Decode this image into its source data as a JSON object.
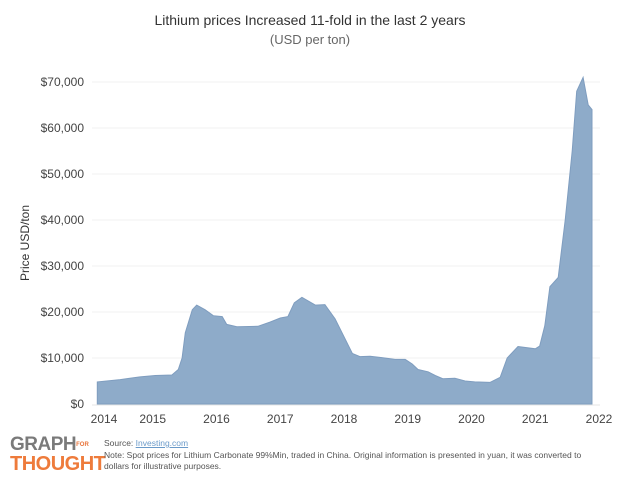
{
  "chart_data": {
    "type": "area",
    "title": "Lithium prices Increased 11-fold in the last 2 years",
    "subtitle": "(USD per ton)",
    "xlabel": "",
    "ylabel": "Price USD/ton",
    "xlim": [
      2014,
      2022
    ],
    "ylim": [
      0,
      70000
    ],
    "x_ticks": [
      "2014",
      "2015",
      "2016",
      "2017",
      "2018",
      "2019",
      "2020",
      "2021",
      "2022"
    ],
    "y_ticks": [
      "$0",
      "$10,000",
      "$20,000",
      "$30,000",
      "$40,000",
      "$50,000",
      "$60,000",
      "$70,000"
    ],
    "grid": true,
    "color": "#8eabc9",
    "line_color": "#7f9dbf",
    "series": [
      {
        "name": "Lithium Carbonate 99%Min",
        "x": [
          2014.13,
          2014.49,
          2014.8,
          2015.04,
          2015.3,
          2015.4,
          2015.46,
          2015.51,
          2015.62,
          2015.69,
          2015.82,
          2015.95,
          2016.09,
          2016.16,
          2016.32,
          2016.65,
          2016.84,
          2017.0,
          2017.12,
          2017.22,
          2017.34,
          2017.55,
          2017.7,
          2017.86,
          2018.13,
          2018.25,
          2018.41,
          2018.64,
          2018.8,
          2018.96,
          2019.07,
          2019.16,
          2019.32,
          2019.43,
          2019.55,
          2019.74,
          2019.9,
          2020.05,
          2020.29,
          2020.45,
          2020.56,
          2020.73,
          2021.0,
          2021.07,
          2021.15,
          2021.23,
          2021.36,
          2021.47,
          2021.58,
          2021.65,
          2021.75,
          2021.83,
          2021.89
        ],
        "y": [
          4800,
          5300,
          5900,
          6200,
          6300,
          7500,
          10000,
          15500,
          20500,
          21500,
          20500,
          19200,
          19000,
          17300,
          16800,
          16900,
          17800,
          18700,
          19000,
          22000,
          23200,
          21500,
          21600,
          18500,
          11000,
          10300,
          10400,
          10000,
          9700,
          9700,
          8700,
          7500,
          7000,
          6200,
          5500,
          5600,
          5000,
          4800,
          4700,
          5800,
          10000,
          12500,
          12000,
          12600,
          17000,
          25500,
          27500,
          40000,
          55000,
          68000,
          71000,
          65000,
          64000
        ]
      }
    ]
  },
  "footer": {
    "logo_top": "GRAPH",
    "logo_for": "FOR",
    "logo_bottom": "THOUGHT",
    "source_label": "Source: ",
    "source_link": "Investing.com",
    "note": "Note: Spot prices for Lithium Carbonate 99%Min, traded in China. Original information is presented in yuan, it was converted to dollars for illustrative purposes."
  }
}
